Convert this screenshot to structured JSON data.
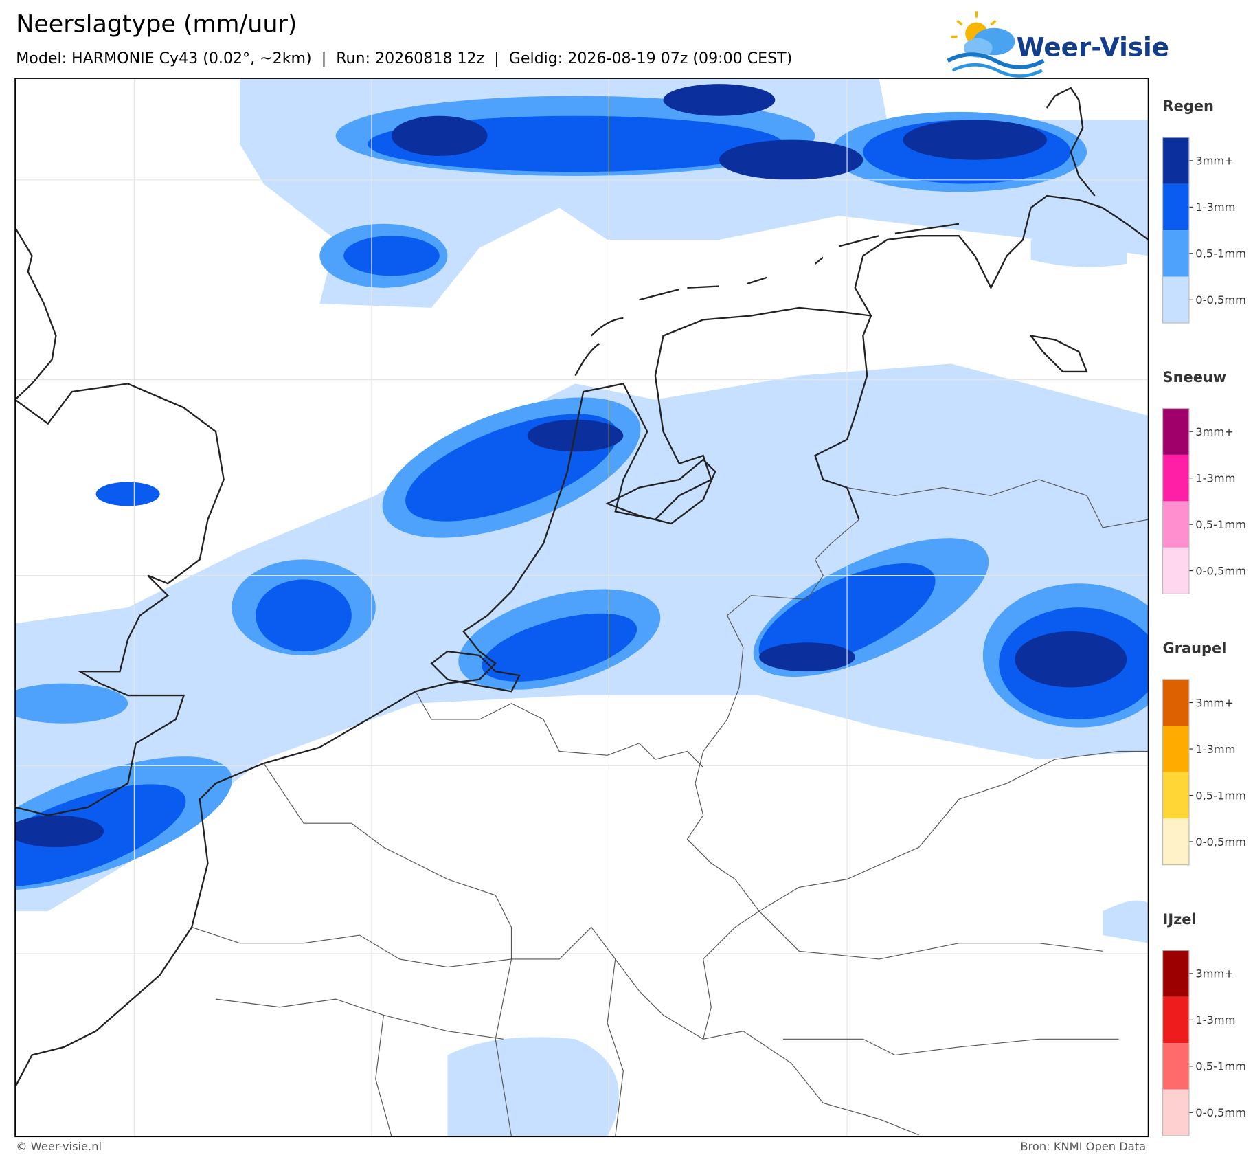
{
  "header": {
    "title": "Neerslagtype (mm/uur)",
    "subtitle": "Model: HARMONIE Cy43 (0.02°, ~2km)  |  Run: 20260818 12z  |  Geldig: 2026-08-19 07z (09:00 CEST)",
    "logo": "Weer-Visie"
  },
  "legend": [
    {
      "title": "Regen",
      "items": [
        {
          "label": "3mm+",
          "color": "#0b2f9c"
        },
        {
          "label": "1-3mm",
          "color": "#0a5cf0"
        },
        {
          "label": "0,5-1mm",
          "color": "#4ea2fb"
        },
        {
          "label": "0-0,5mm",
          "color": "#c8e0ff"
        }
      ]
    },
    {
      "title": "Sneeuw",
      "items": [
        {
          "label": "3mm+",
          "color": "#a0006a"
        },
        {
          "label": "1-3mm",
          "color": "#ff1fa6"
        },
        {
          "label": "0,5-1mm",
          "color": "#ff8fce"
        },
        {
          "label": "0-0,5mm",
          "color": "#ffd8ef"
        }
      ]
    },
    {
      "title": "Graupel",
      "items": [
        {
          "label": "3mm+",
          "color": "#dd6100"
        },
        {
          "label": "1-3mm",
          "color": "#ffab00"
        },
        {
          "label": "0,5-1mm",
          "color": "#ffd633"
        },
        {
          "label": "0-0,5mm",
          "color": "#fff1c8"
        }
      ]
    },
    {
      "title": "IJzel",
      "items": [
        {
          "label": "3mm+",
          "color": "#9c0000"
        },
        {
          "label": "1-3mm",
          "color": "#ee1c1c"
        },
        {
          "label": "0,5-1mm",
          "color": "#ff6b6b"
        },
        {
          "label": "0-0,5mm",
          "color": "#ffd0d0"
        }
      ]
    }
  ],
  "footer": {
    "copyright": "© Weer-visie.nl",
    "source": "Bron: KNMI Open Data"
  }
}
